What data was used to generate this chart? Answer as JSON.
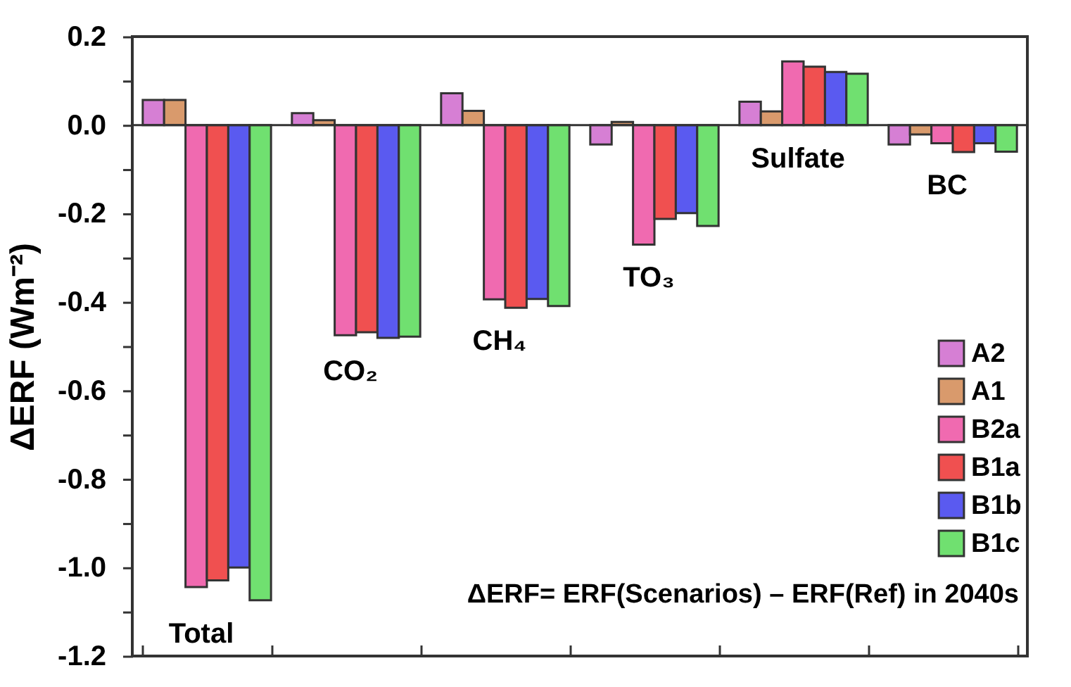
{
  "chart_data": {
    "type": "bar",
    "categories": [
      "Total",
      "CO₂",
      "CH₄",
      "TO₃",
      "Sulfate",
      "BC"
    ],
    "series": [
      {
        "name": "A2",
        "color": "#d67fd4",
        "values": [
          0.057,
          0.027,
          0.072,
          -0.044,
          0.053,
          -0.044
        ]
      },
      {
        "name": "A1",
        "color": "#d99a6c",
        "values": [
          0.057,
          0.011,
          0.032,
          0.007,
          0.031,
          -0.021
        ]
      },
      {
        "name": "B2a",
        "color": "#f06ab0",
        "values": [
          -1.044,
          -0.475,
          -0.394,
          -0.27,
          0.144,
          -0.041
        ]
      },
      {
        "name": "B1a",
        "color": "#f05050",
        "values": [
          -1.029,
          -0.468,
          -0.413,
          -0.212,
          0.132,
          -0.061
        ]
      },
      {
        "name": "B1b",
        "color": "#5a5af0",
        "values": [
          -1.0,
          -0.481,
          -0.393,
          -0.199,
          0.12,
          -0.041
        ]
      },
      {
        "name": "B1c",
        "color": "#70e070",
        "values": [
          -1.074,
          -0.478,
          -0.409,
          -0.228,
          0.116,
          -0.06
        ]
      }
    ],
    "ylabel": "ΔERF (Wm⁻²)",
    "ylim": [
      -1.2,
      0.2
    ],
    "yticks": [
      0.2,
      {
        "value": 0.1,
        "label": null
      },
      {
        "value": 0,
        "label": "0.0"
      },
      {
        "value": -0.1,
        "label": null
      },
      -0.2,
      {
        "value": -0.3,
        "label": null
      },
      -0.4,
      {
        "value": -0.5,
        "label": null
      },
      -0.6,
      {
        "value": -0.7,
        "label": null
      },
      -0.8,
      {
        "value": -0.9,
        "label": null
      },
      {
        "value": -1.0,
        "label": "-1.0"
      },
      {
        "value": -1.1,
        "label": null
      },
      -1.2
    ],
    "ref_lines": [
      {
        "axis": "y",
        "value": 0
      }
    ],
    "annotations": [
      "ΔERF= ERF(Scenarios) – ERF(Ref) in 2040s"
    ],
    "legend": "bottom right",
    "grid": false,
    "tick_labels": "y"
  }
}
